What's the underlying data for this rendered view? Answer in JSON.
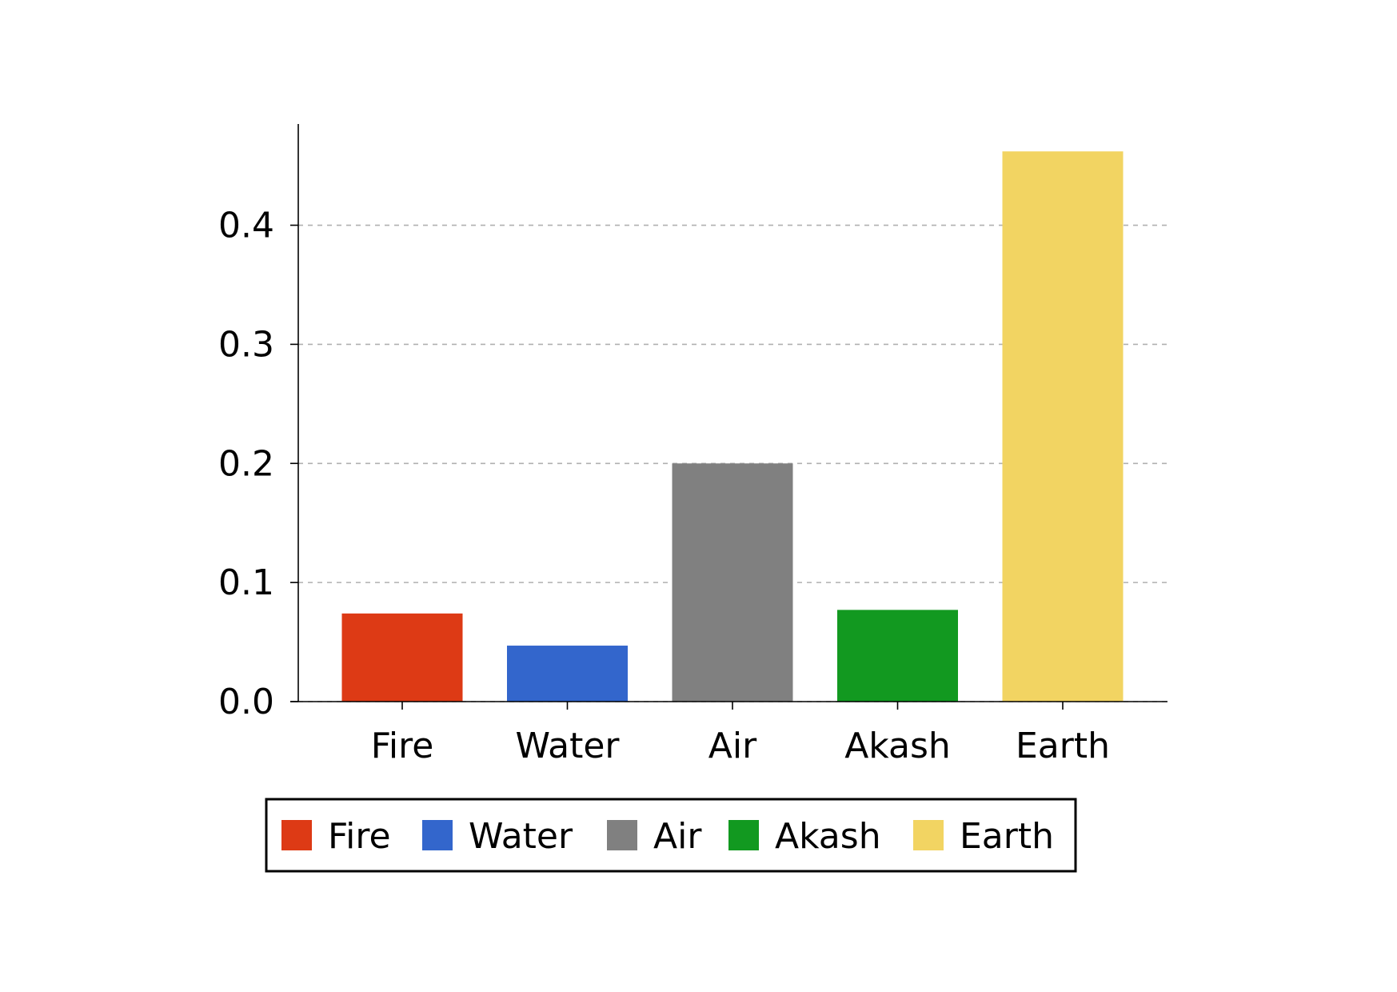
{
  "chart_data": {
    "type": "bar",
    "categories": [
      "Fire",
      "Water",
      "Air",
      "Akash",
      "Earth"
    ],
    "values": [
      0.074,
      0.047,
      0.2,
      0.077,
      0.462
    ],
    "colors": [
      "#dd3a15",
      "#3366cc",
      "#808080",
      "#129920",
      "#f2d462"
    ],
    "ylim": [
      0,
      0.485
    ],
    "yticks": [
      0.0,
      0.1,
      0.2,
      0.3,
      0.4
    ],
    "ytick_labels": [
      "0.0",
      "0.1",
      "0.2",
      "0.3",
      "0.4"
    ],
    "grid": "y-dashed",
    "legend": {
      "placement": "bottom-center",
      "entries": [
        "Fire",
        "Water",
        "Air",
        "Akash",
        "Earth"
      ]
    }
  }
}
